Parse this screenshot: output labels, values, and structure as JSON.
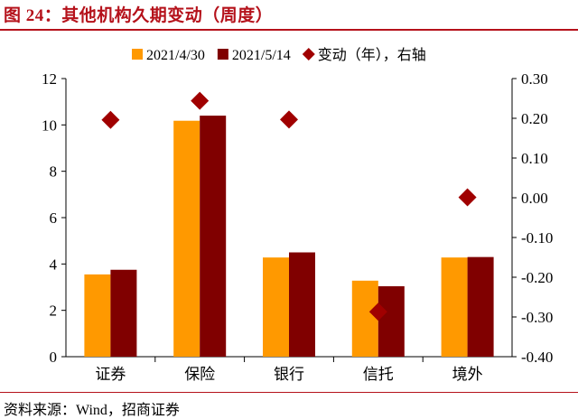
{
  "title": "图 24：其他机构久期变动（周度）",
  "source": "资料来源：Wind，招商证券",
  "colors": {
    "series1": "#ff9900",
    "series2": "#800000",
    "change": "#a00000",
    "accent": "#b5121b"
  },
  "chart_data": {
    "type": "bar",
    "categories": [
      "证券",
      "保险",
      "银行",
      "信托",
      "境外"
    ],
    "series": [
      {
        "name": "2021/4/30",
        "values": [
          3.55,
          10.18,
          4.28,
          3.28,
          4.28
        ],
        "marker": "bar"
      },
      {
        "name": "2021/5/14",
        "values": [
          3.75,
          10.4,
          4.5,
          3.04,
          4.3
        ],
        "marker": "bar"
      },
      {
        "name": "变动（年），右轴",
        "values": [
          0.196,
          0.244,
          0.197,
          -0.287,
          0.001
        ],
        "marker": "diamond",
        "axis": "right"
      }
    ],
    "ylim": [
      0,
      12
    ],
    "yticks": [
      "0",
      "2",
      "4",
      "6",
      "8",
      "10",
      "12"
    ],
    "y2lim": [
      -0.4,
      0.3
    ],
    "y2ticks": [
      "-0.40",
      "-0.30",
      "-0.20",
      "-0.10",
      "0.00",
      "0.10",
      "0.20",
      "0.30"
    ],
    "legend_position": "top",
    "grid": false
  }
}
